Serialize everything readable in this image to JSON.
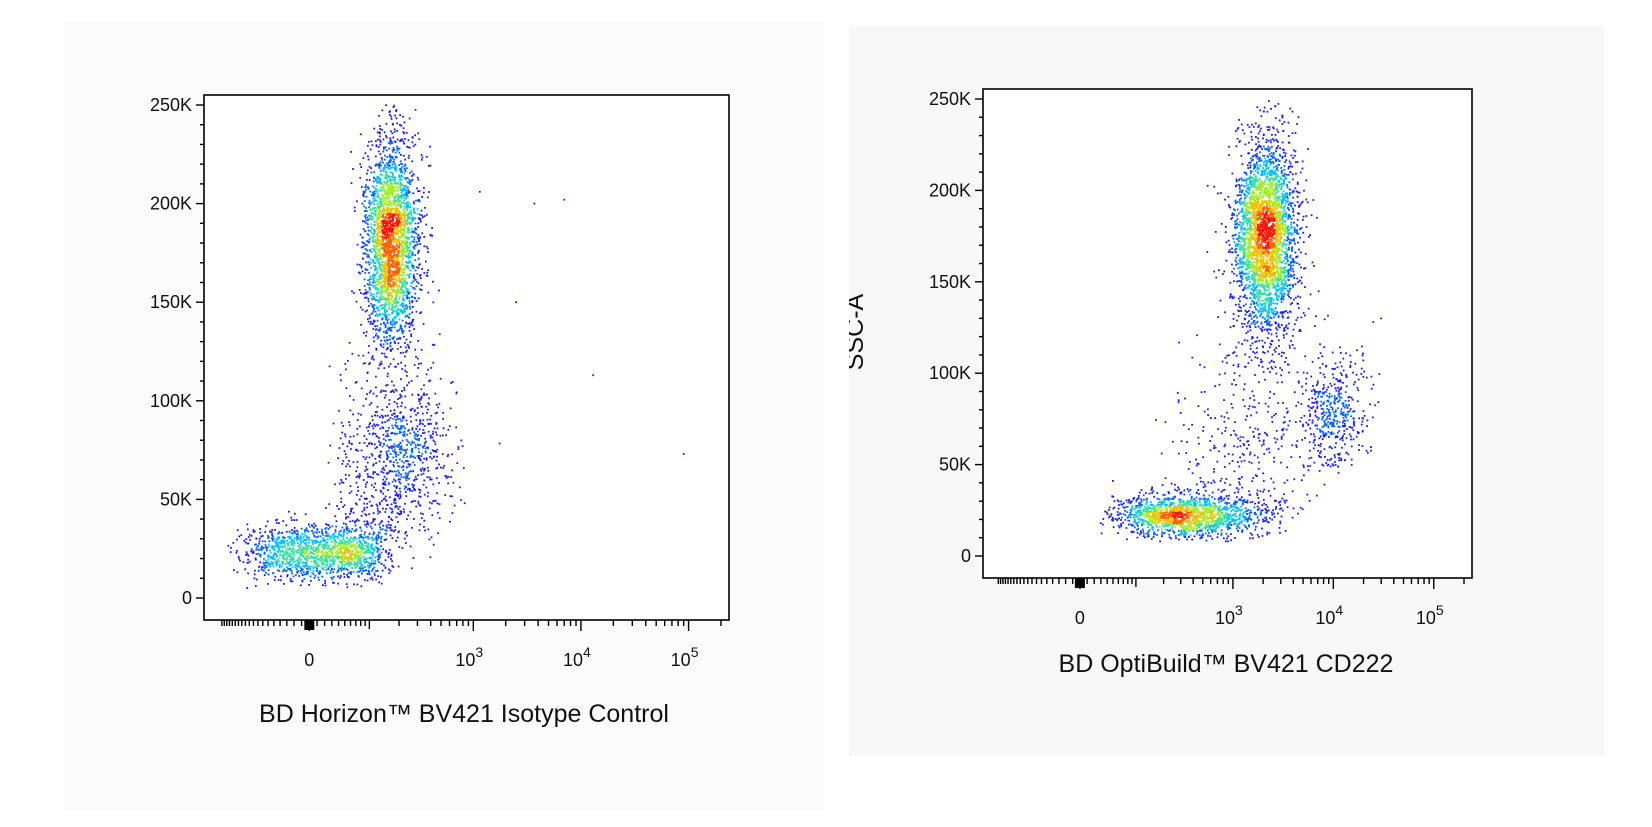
{
  "colors": {
    "low": "#1010ff",
    "mid": "#00c8ff",
    "high": "#a0ff30",
    "peak": "#ff2000"
  },
  "charts": [
    {
      "id": "left",
      "chart_data": {
        "type": "scatter",
        "subtype": "flow-cytometry density dot plot (pseudocolor)",
        "title": "",
        "xlabel": "BD Horizon™ BV421 Isotype Control",
        "ylabel": "",
        "x_scale": "biexponential",
        "xlim": [
          -200,
          200000
        ],
        "ylim": [
          0,
          262144
        ],
        "x_ticks": [
          {
            "value": 0,
            "label": "0"
          },
          {
            "value": 1000,
            "base": "10",
            "exp": "3"
          },
          {
            "value": 10000,
            "base": "10",
            "exp": "4"
          },
          {
            "value": 100000,
            "base": "10",
            "exp": "5"
          }
        ],
        "y_ticks": [
          {
            "value": 0,
            "label": "0"
          },
          {
            "value": 50000,
            "label": "50K"
          },
          {
            "value": 100000,
            "label": "100K"
          },
          {
            "value": 150000,
            "label": "150K"
          },
          {
            "value": 200000,
            "label": "200K"
          },
          {
            "value": 250000,
            "label": "250K"
          }
        ],
        "populations": [
          {
            "name": "",
            "n": 2600,
            "x_center": 165,
            "x_log_sd": 0.14,
            "y_center": 180000,
            "y_sd": 27000,
            "y_tilt": 0.0,
            "y_min": 115000,
            "y_max": 250000
          },
          {
            "name": "",
            "n": 1400,
            "x_center": 15,
            "x_log_sd": 0.35,
            "y_center": 23000,
            "y_sd": 7000,
            "y_tilt": 0,
            "y_min": 5000,
            "y_max": 48000
          },
          {
            "name": "",
            "n": 600,
            "x_center": 250,
            "x_log_sd": 0.22,
            "y_center": 75000,
            "y_sd": 22000,
            "y_tilt": 0,
            "y_min": 25000,
            "y_max": 135000
          },
          {
            "name": "",
            "n": 380,
            "x_center": 110,
            "x_log_sd": 0.25,
            "y_center": 55000,
            "y_sd": 30000,
            "y_tilt": 0,
            "y_min": 15000,
            "y_max": 130000
          }
        ],
        "outliers": [
          {
            "x": 2500,
            "y": 150000
          },
          {
            "x": 3700,
            "y": 200000
          },
          {
            "x": 7000,
            "y": 202000
          },
          {
            "x": 13000,
            "y": 113000
          },
          {
            "x": 90000,
            "y": 73000
          },
          {
            "x": 1150,
            "y": 206000
          }
        ]
      }
    },
    {
      "id": "right",
      "chart_data": {
        "type": "scatter",
        "subtype": "flow-cytometry density dot plot (pseudocolor)",
        "title": "",
        "xlabel": "BD OptiBuild™ BV421 CD222",
        "ylabel": "SSC-A",
        "x_scale": "biexponential",
        "xlim": [
          -200,
          200000
        ],
        "ylim": [
          0,
          262144
        ],
        "x_ticks": [
          {
            "value": 0,
            "label": "0"
          },
          {
            "value": 1000,
            "base": "10",
            "exp": "3"
          },
          {
            "value": 10000,
            "base": "10",
            "exp": "4"
          },
          {
            "value": 100000,
            "base": "10",
            "exp": "5"
          }
        ],
        "y_ticks": [
          {
            "value": 0,
            "label": "0"
          },
          {
            "value": 50000,
            "label": "50K"
          },
          {
            "value": 100000,
            "label": "100K"
          },
          {
            "value": 150000,
            "label": "150K"
          },
          {
            "value": 200000,
            "label": "200K"
          },
          {
            "value": 250000,
            "label": "250K"
          }
        ],
        "populations": [
          {
            "name": "",
            "n": 3000,
            "x_center": 2100,
            "x_log_sd": 0.16,
            "y_center": 175000,
            "y_sd": 27000,
            "y_tilt": 0,
            "y_min": 100000,
            "y_max": 250000
          },
          {
            "name": "",
            "n": 1500,
            "x_center": 350,
            "x_log_sd": 0.4,
            "y_center": 22000,
            "y_sd": 6000,
            "y_tilt": 0,
            "y_min": 8000,
            "y_max": 45000
          },
          {
            "name": "",
            "n": 450,
            "x_center": 10000,
            "x_log_sd": 0.17,
            "y_center": 78000,
            "y_sd": 16000,
            "y_tilt": 0,
            "y_min": 45000,
            "y_max": 130000
          },
          {
            "name": "",
            "n": 350,
            "x_center": 1500,
            "x_log_sd": 0.35,
            "y_center": 60000,
            "y_sd": 35000,
            "y_tilt": 0,
            "y_min": 20000,
            "y_max": 135000
          }
        ],
        "outliers": [
          {
            "x": 650,
            "y": 202000
          },
          {
            "x": 25000,
            "y": 128000
          },
          {
            "x": 30000,
            "y": 130000
          }
        ]
      }
    }
  ]
}
